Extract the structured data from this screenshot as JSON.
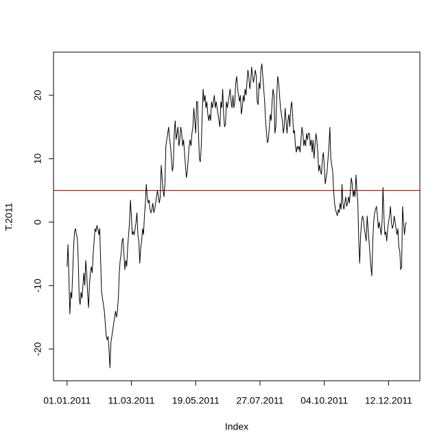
{
  "chart_data": {
    "type": "line",
    "x_label": "Index",
    "y_label": "T.2011",
    "xlim": [
      -13.56,
      379.56
    ],
    "ylim": [
      -25,
      26.8
    ],
    "xticks": [
      {
        "value": 1,
        "label": "01.01.2011"
      },
      {
        "value": 70,
        "label": "11.03.2011"
      },
      {
        "value": 139,
        "label": "19.05.2011"
      },
      {
        "value": 208,
        "label": "27.07.2011"
      },
      {
        "value": 277,
        "label": "04.10.2011"
      },
      {
        "value": 346,
        "label": "12.12.2011"
      }
    ],
    "yticks": [
      -20,
      -10,
      0,
      10,
      20
    ],
    "hline": 5,
    "hline_color": "#cc0000",
    "series": [
      {
        "name": "T.2011",
        "color": "#000000",
        "values": [
          -7,
          -3.5,
          -9,
          -14.5,
          -11,
          -12,
          -8,
          -4,
          -1.5,
          -1,
          -2,
          -2.5,
          -6,
          -12,
          -13,
          -11,
          -12,
          -10,
          -8,
          -10,
          -6,
          -8,
          -11,
          -13.5,
          -10,
          -8,
          -7,
          -8,
          -5,
          -3,
          -1,
          -1.5,
          -0.5,
          -1,
          -2,
          -1,
          -6,
          -11,
          -12,
          -13,
          -14,
          -16,
          -18,
          -18.5,
          -18,
          -20,
          -23,
          -19,
          -18,
          -17,
          -16,
          -15,
          -14,
          -15,
          -14,
          -12,
          -8,
          -6,
          -5,
          -3,
          -2.5,
          -5,
          -7.5,
          -6,
          -7,
          -4,
          -2,
          0,
          3.5,
          1,
          -2,
          -1.5,
          -2,
          -1,
          0,
          1.5,
          -2,
          -3,
          -6.5,
          -4,
          -3,
          -1,
          -2,
          1,
          3,
          6,
          4,
          3,
          3.5,
          2,
          1.5,
          2,
          3,
          1.5,
          2,
          3,
          4,
          5,
          4,
          3,
          4,
          9,
          7,
          5,
          4,
          6,
          12,
          13,
          14,
          15,
          13,
          12,
          10,
          8,
          9,
          14,
          16,
          13,
          14,
          15,
          12,
          13,
          15,
          14,
          12,
          13,
          11,
          9,
          7,
          8,
          10,
          12,
          13,
          12,
          14,
          15,
          18,
          16,
          14,
          19,
          19,
          14,
          10,
          9.5,
          12,
          17,
          21,
          19,
          20,
          18,
          19,
          17,
          16,
          17,
          16,
          19,
          18,
          19,
          20,
          18,
          19,
          18,
          17,
          16,
          15,
          19,
          18,
          21,
          17,
          15,
          15.5,
          19,
          18,
          19,
          20,
          21,
          19,
          18,
          20,
          18,
          19,
          22,
          23,
          21,
          20,
          19,
          20,
          17,
          18,
          20,
          19,
          21,
          20,
          22,
          24,
          23,
          21,
          22,
          24.5,
          23,
          22,
          23,
          24,
          23,
          19,
          18.5,
          22,
          21,
          24,
          25,
          23,
          21,
          19,
          16,
          14,
          12.5,
          13,
          15,
          17,
          16,
          19,
          21,
          20,
          14,
          15,
          20,
          23,
          22,
          20,
          18,
          17,
          16,
          14,
          15,
          18,
          16,
          14,
          16,
          17,
          15,
          18,
          19,
          17,
          14,
          14.5,
          12,
          11,
          12,
          11.5,
          12,
          11,
          13,
          15,
          14,
          12,
          13,
          12,
          14,
          13,
          14,
          14,
          12,
          13,
          11,
          13,
          10,
          12,
          14,
          13,
          11,
          8,
          9,
          8,
          7.5,
          10,
          11,
          9,
          6,
          7,
          8,
          10,
          12,
          15,
          10,
          9,
          8,
          5,
          3,
          2,
          1.5,
          1,
          2,
          1.5,
          3,
          2,
          6,
          3,
          2,
          3,
          4,
          2.5,
          3,
          4,
          3,
          5,
          7,
          6,
          4,
          5,
          4,
          7.5,
          5,
          3,
          -3,
          -6.5,
          -2,
          0,
          1,
          0.5,
          -1,
          -2,
          -3,
          1,
          -1,
          -3,
          -5,
          -7,
          -8.5,
          -3,
          0,
          1.5,
          2,
          2.5,
          1,
          -1,
          0,
          -1,
          -2,
          0,
          5.5,
          1,
          -2,
          -1.5,
          -3,
          -1,
          0,
          1,
          2.5,
          0,
          -1,
          -0.5,
          1,
          0,
          -1,
          -2,
          -1,
          -4,
          -4.5,
          -7.5,
          -7,
          2.5,
          0,
          -2,
          -0.5,
          0
        ]
      }
    ]
  }
}
